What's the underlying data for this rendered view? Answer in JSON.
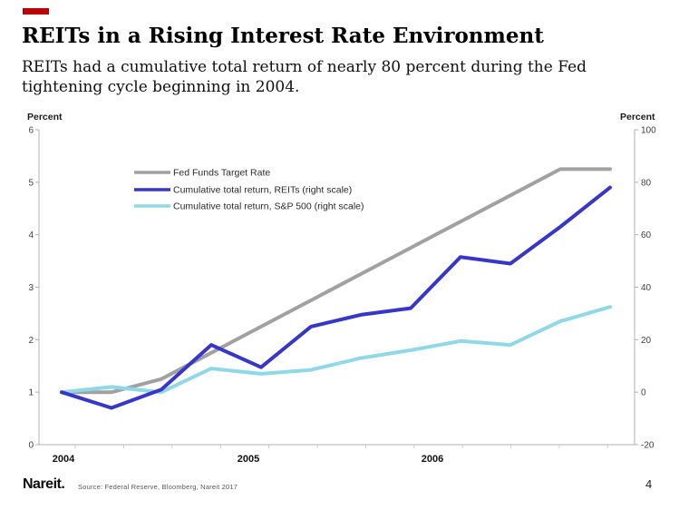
{
  "slide": {
    "accent_bar_color": "#c00000",
    "title": "REITs in a Rising Interest Rate Environment",
    "subtitle": "REITs had a cumulative total return of nearly 80 percent during the Fed tightening cycle beginning in 2004.",
    "footer": {
      "logo_text": "Nareit.",
      "source_text": "Source: Federal Reserve, Bloomberg, Nareit 2017",
      "page_number": "4"
    }
  },
  "chart_data": {
    "type": "line",
    "grid": false,
    "legend_position": "top-left-inside",
    "left_axis": {
      "label": "Percent",
      "ticks": [
        6,
        5,
        4,
        3,
        2,
        1,
        0
      ],
      "range": [
        0,
        6
      ]
    },
    "right_axis": {
      "label": "Percent",
      "ticks": [
        100,
        80,
        60,
        40,
        20,
        0,
        -20
      ],
      "range": [
        -20,
        100
      ]
    },
    "x_axis": {
      "year_labels": [
        "2004",
        "2005",
        "2006"
      ],
      "minor_ticks_per_year": 4
    },
    "series": [
      {
        "name": "Fed Funds Target Rate",
        "axis": "left",
        "color": "#a1a1a1",
        "values": [
          1.0,
          1.0,
          1.25,
          1.75,
          2.25,
          2.75,
          3.25,
          3.75,
          4.25,
          4.75,
          5.25,
          5.25
        ]
      },
      {
        "name": "Cumulative total return, REITs (right scale)",
        "axis": "right",
        "color": "#3636c9",
        "values": [
          0,
          -6,
          1,
          18,
          9.5,
          25,
          29.5,
          32,
          51.5,
          49,
          63,
          78
        ]
      },
      {
        "name": "Cumulative total return, S&P 500 (right scale)",
        "axis": "right",
        "color": "#8fd8e8",
        "values": [
          0,
          2,
          0,
          9,
          7,
          8.5,
          13,
          16,
          19.5,
          18,
          27,
          32.5
        ]
      }
    ]
  }
}
